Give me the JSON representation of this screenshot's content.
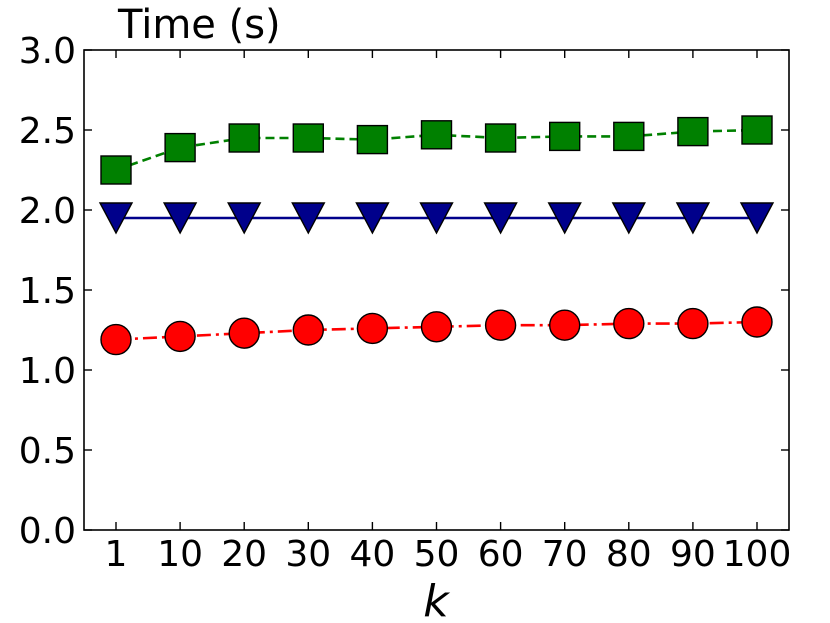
{
  "chart_data": {
    "type": "line",
    "title": "",
    "ylabel": "Time (s)",
    "xlabel": "k",
    "categories": [
      "1",
      "10",
      "20",
      "30",
      "40",
      "50",
      "60",
      "70",
      "80",
      "90",
      "100"
    ],
    "ylim": [
      0,
      3.0
    ],
    "yticks": [
      "0.0",
      "0.5",
      "1.0",
      "1.5",
      "2.0",
      "2.5",
      "3.0"
    ],
    "grid": false,
    "series": [
      {
        "color": "#008000",
        "marker": "square",
        "linestyle": "dashed",
        "values": [
          2.25,
          2.39,
          2.45,
          2.45,
          2.44,
          2.47,
          2.45,
          2.46,
          2.46,
          2.49,
          2.5
        ]
      },
      {
        "color": "#00008B",
        "marker": "triangle-down",
        "linestyle": "solid",
        "values": [
          1.95,
          1.95,
          1.95,
          1.95,
          1.95,
          1.95,
          1.95,
          1.95,
          1.95,
          1.95,
          1.95
        ]
      },
      {
        "color": "#FF0000",
        "marker": "circle",
        "linestyle": "dash-dot",
        "values": [
          1.19,
          1.21,
          1.23,
          1.25,
          1.26,
          1.27,
          1.28,
          1.28,
          1.29,
          1.29,
          1.3
        ]
      }
    ]
  }
}
